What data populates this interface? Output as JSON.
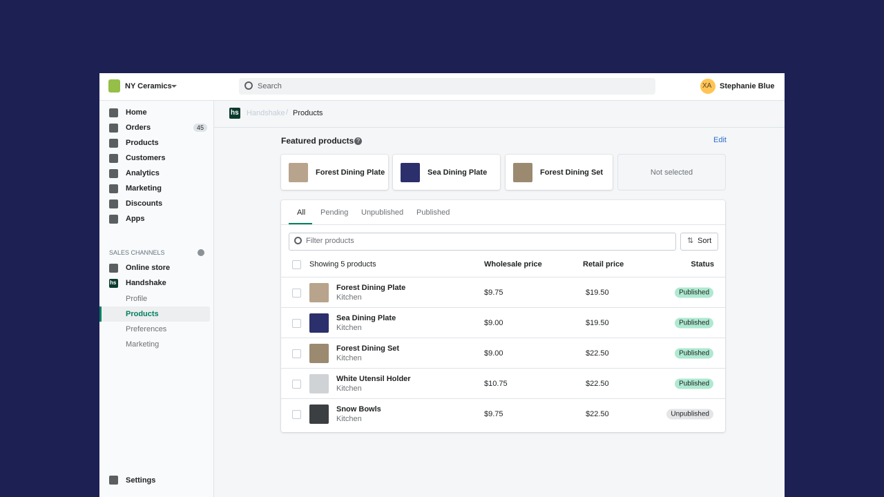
{
  "topbar": {
    "store": "NY Ceramics",
    "search": "Search",
    "avatar": "XA",
    "user": "Stephanie Blue"
  },
  "nav": [
    {
      "label": "Home"
    },
    {
      "label": "Orders",
      "badge": 45
    },
    {
      "label": "Products"
    },
    {
      "label": "Customers"
    },
    {
      "label": "Analytics"
    },
    {
      "label": "Marketing"
    },
    {
      "label": "Discounts"
    },
    {
      "label": "Apps"
    }
  ],
  "sales_channels": {
    "title": "SALES CHANNELS",
    "channels": [
      "Online store",
      "Handshake"
    ],
    "logo": "hs",
    "sub_items": [
      "Profile",
      "Products",
      "Preferences",
      "Marketing"
    ]
  },
  "settings": "Settings",
  "breadcrumb": {
    "logo": "hs",
    "parent": "Handshake",
    "current": "Products"
  },
  "featured": {
    "title": "Featured products",
    "edit": "Edit",
    "items": [
      "Forest Dining Plate",
      "Sea Dining Plate",
      "Forest Dining Set",
      "Not selected"
    ]
  },
  "tabs": [
    "All",
    "Pending",
    "Unpublished",
    "Published"
  ],
  "filter": "Filter products",
  "sort": "Sort",
  "table": {
    "header": [
      "Showing 5 products",
      "Wholesale price",
      "Retail price",
      "Status"
    ],
    "rows": [
      [
        "Forest Dining Plate",
        "Kitchen",
        "$9.75",
        "$19.50",
        "Published"
      ],
      [
        "Sea Dining Plate",
        "Kitchen",
        "$9.00",
        "$19.50",
        "Published"
      ],
      [
        "Forest Dining Set",
        "Kitchen",
        "$9.00",
        "$22.50",
        "Published"
      ],
      [
        "White Utensil Holder",
        "Kitchen",
        "$10.75",
        "$22.50",
        "Published"
      ],
      [
        "Snow Bowls",
        "Kitchen",
        "$9.75",
        "$22.50",
        "Unpublished"
      ]
    ]
  }
}
